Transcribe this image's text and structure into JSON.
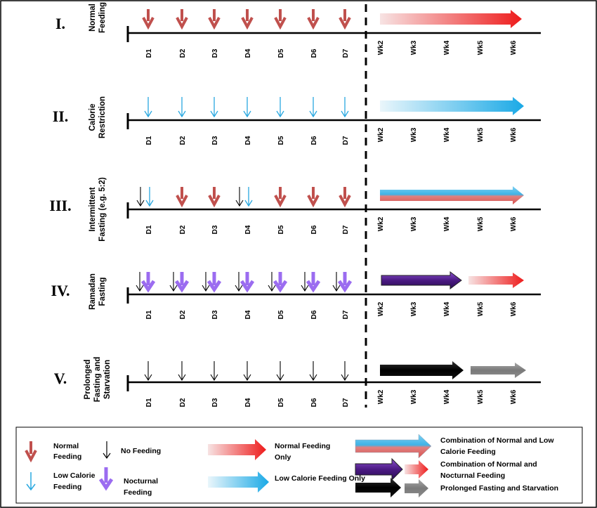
{
  "rows": [
    {
      "numeral": "I.",
      "label": [
        "Normal",
        "Feeding"
      ],
      "pattern": "normal"
    },
    {
      "numeral": "II.",
      "label": [
        "Calorie",
        "Restriction"
      ],
      "pattern": "low"
    },
    {
      "numeral": "III.",
      "label": [
        "Intermittent",
        "Fasting (e.g. 5:2)"
      ],
      "pattern": "intermittent"
    },
    {
      "numeral": "IV.",
      "label": [
        "Ramadan",
        "Fasting"
      ],
      "pattern": "ramadan"
    },
    {
      "numeral": "V.",
      "label": [
        "Prolonged",
        "Fasting and",
        "Starvation"
      ],
      "pattern": "none"
    }
  ],
  "days": [
    "D1",
    "D2",
    "D3",
    "D4",
    "D5",
    "D6",
    "D7"
  ],
  "weeks": [
    "Wk2",
    "Wk3",
    "Wk4",
    "Wk5",
    "Wk6"
  ],
  "legend": {
    "normal_feeding": [
      "Normal",
      "Feeding"
    ],
    "no_feeding": "No Feeding",
    "low_calorie_feeding": [
      "Low Calorie",
      "Feeding"
    ],
    "nocturnal_feeding": [
      "Nocturnal",
      "Feeding"
    ],
    "normal_only": [
      "Normal Feeding",
      "Only"
    ],
    "low_only": "Low Calorie Feeding Only",
    "combo_normal_low": [
      "Combination of Normal and Low",
      "Calorie  Feeding"
    ],
    "combo_normal_nocturnal": [
      "Combination of Normal and",
      "Nocturnal Feeding"
    ],
    "prolonged": "Prolonged Fasting and Starvation"
  },
  "colors": {
    "normal": "#c0504d",
    "low": "#29a8e0",
    "nocturnal": "#9b6cf0",
    "none": "#000000",
    "red_gradient_end": "#ee1c1c",
    "blue_gradient_end": "#1aa9e6",
    "purple_arrow": "#4b1a82",
    "grey_arrow": "#808080"
  }
}
